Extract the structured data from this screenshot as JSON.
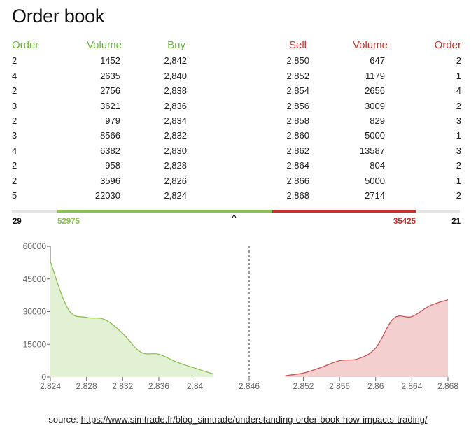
{
  "page": {
    "title": "Order book"
  },
  "headers": {
    "buy_order": "Order",
    "buy_volume": "Volume",
    "buy": "Buy",
    "sell": "Sell",
    "sell_volume": "Volume",
    "sell_order": "Order"
  },
  "rows": [
    {
      "buy_order": "2",
      "buy_volume": "1452",
      "buy": "2,842",
      "sell": "2,850",
      "sell_volume": "647",
      "sell_order": "2"
    },
    {
      "buy_order": "4",
      "buy_volume": "2635",
      "buy": "2,840",
      "sell": "2,852",
      "sell_volume": "1179",
      "sell_order": "1"
    },
    {
      "buy_order": "2",
      "buy_volume": "2756",
      "buy": "2,838",
      "sell": "2,854",
      "sell_volume": "2656",
      "sell_order": "4"
    },
    {
      "buy_order": "3",
      "buy_volume": "3621",
      "buy": "2,836",
      "sell": "2,856",
      "sell_volume": "3009",
      "sell_order": "2"
    },
    {
      "buy_order": "2",
      "buy_volume": "979",
      "buy": "2,834",
      "sell": "2,858",
      "sell_volume": "829",
      "sell_order": "3"
    },
    {
      "buy_order": "3",
      "buy_volume": "8566",
      "buy": "2,832",
      "sell": "2,860",
      "sell_volume": "5000",
      "sell_order": "1"
    },
    {
      "buy_order": "4",
      "buy_volume": "6382",
      "buy": "2,830",
      "sell": "2,862",
      "sell_volume": "13587",
      "sell_order": "3"
    },
    {
      "buy_order": "2",
      "buy_volume": "958",
      "buy": "2,828",
      "sell": "2,864",
      "sell_volume": "804",
      "sell_order": "2"
    },
    {
      "buy_order": "2",
      "buy_volume": "3596",
      "buy": "2,826",
      "sell": "2,866",
      "sell_volume": "5000",
      "sell_order": "1"
    },
    {
      "buy_order": "5",
      "buy_volume": "22030",
      "buy": "2,824",
      "sell": "2,868",
      "sell_volume": "2714",
      "sell_order": "2"
    }
  ],
  "totals": {
    "buy_orders": "29",
    "buy_volume": "52975",
    "sell_volume": "35425",
    "sell_orders": "21",
    "balance_buy_fraction": 0.599,
    "toggle_glyph": "^"
  },
  "colors": {
    "buy": "#8cc152",
    "buy_header": "#6cb93a",
    "buy_fill": "#e2f1d3",
    "sell": "#c9302c",
    "sell_line": "#cf5555",
    "sell_fill": "#f4cfcf"
  },
  "chart_data": {
    "type": "area",
    "xlim": [
      2.824,
      2.868
    ],
    "ylim": [
      0,
      60000
    ],
    "yticks": [
      0,
      15000,
      30000,
      45000,
      60000
    ],
    "ytick_labels": [
      "0",
      "15000",
      "30000",
      "45000",
      "60000"
    ],
    "xticks": [
      2.824,
      2.828,
      2.832,
      2.836,
      2.84,
      2.846,
      2.852,
      2.856,
      2.86,
      2.864,
      2.868
    ],
    "xtick_labels": [
      "2.824",
      "2.828",
      "2.832",
      "2.836",
      "2.84",
      "2.846",
      "2.852",
      "2.856",
      "2.86",
      "2.864",
      "2.868"
    ],
    "mid_price": 2.846,
    "series": [
      {
        "side": "buy",
        "x": [
          2.824,
          2.826,
          2.828,
          2.83,
          2.832,
          2.834,
          2.836,
          2.838,
          2.84,
          2.842
        ],
        "y": [
          52975,
          30945,
          27349,
          26391,
          20009,
          11443,
          10464,
          6843,
          4087,
          1452
        ]
      },
      {
        "side": "sell",
        "x": [
          2.85,
          2.852,
          2.854,
          2.856,
          2.858,
          2.86,
          2.862,
          2.864,
          2.866,
          2.868
        ],
        "y": [
          647,
          1826,
          4482,
          7491,
          8320,
          13320,
          26907,
          27711,
          32711,
          35425
        ]
      }
    ]
  },
  "source": {
    "prefix": "source: ",
    "url": "https://www.simtrade.fr/blog_simtrade/understanding-order-book-how-impacts-trading/"
  }
}
